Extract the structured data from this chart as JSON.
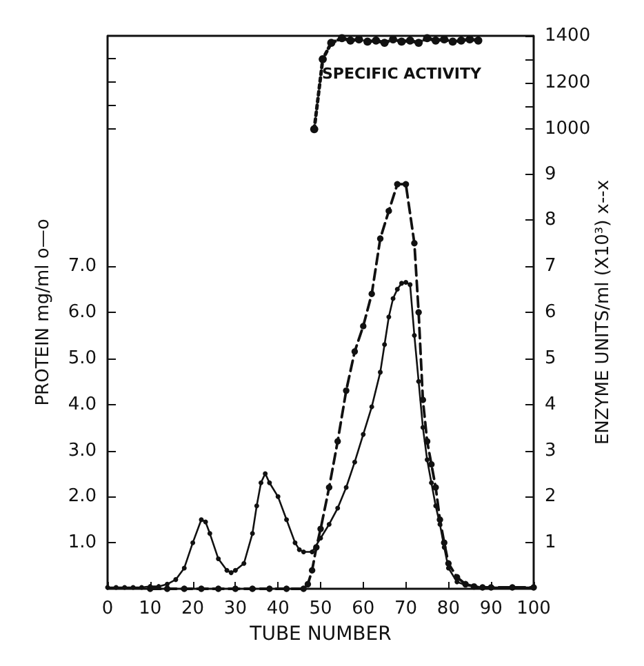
{
  "chart_data": {
    "type": "line",
    "xlabel": "TUBE NUMBER",
    "ylabel": "PROTEIN mg/ml o—o",
    "y2label": "ENZYME UNITS/ml (X10³) x--x",
    "xlim": [
      0,
      100
    ],
    "xticks": [
      0,
      10,
      20,
      30,
      40,
      50,
      60,
      70,
      80,
      90,
      100
    ],
    "ylim": [
      0,
      12
    ],
    "yticks": [
      {
        "value": 1,
        "label": "1.0"
      },
      {
        "value": 2,
        "label": "2.0"
      },
      {
        "value": 3,
        "label": "3.0"
      },
      {
        "value": 4,
        "label": "4.0"
      },
      {
        "value": 5,
        "label": "5.0"
      },
      {
        "value": 6,
        "label": "6.0"
      },
      {
        "value": 7,
        "label": "7.0"
      },
      {
        "value": 10,
        "label": null
      },
      {
        "value": 10.5,
        "label": null
      },
      {
        "value": 11,
        "label": null
      },
      {
        "value": 11.5,
        "label": null
      }
    ],
    "y2lim": [
      0,
      12
    ],
    "y2ticks": [
      1,
      2,
      3,
      4,
      5,
      6,
      7,
      8,
      9
    ],
    "y3lim": [
      -970,
      1400
    ],
    "y3ticks": [
      1000,
      {
        "value": 1100,
        "label": null
      },
      1200,
      {
        "value": 1300,
        "label": null
      },
      1400
    ],
    "grid": false,
    "legend": false,
    "marker": "circle",
    "series": [
      {
        "color": "#111111",
        "line_style": "solid",
        "x": [
          0,
          2,
          4,
          6,
          8,
          10,
          12,
          14,
          16,
          18,
          20,
          22,
          23,
          24,
          26,
          28,
          29,
          30,
          32,
          34,
          35,
          36,
          37,
          38,
          40,
          42,
          44,
          45,
          46,
          48,
          50,
          52,
          54,
          56,
          58,
          60,
          62,
          64,
          65,
          66,
          67,
          68,
          69,
          70,
          71,
          72,
          73,
          74,
          75,
          76,
          77,
          78,
          79,
          80,
          82,
          84,
          86,
          88,
          90,
          95,
          100
        ],
        "values": [
          0.03,
          0.03,
          0.03,
          0.03,
          0.03,
          0.05,
          0.05,
          0.1,
          0.2,
          0.45,
          1.0,
          1.5,
          1.45,
          1.2,
          0.65,
          0.4,
          0.35,
          0.4,
          0.55,
          1.2,
          1.8,
          2.3,
          2.5,
          2.3,
          2.0,
          1.5,
          1.0,
          0.85,
          0.8,
          0.8,
          1.1,
          1.4,
          1.75,
          2.2,
          2.75,
          3.35,
          3.95,
          4.7,
          5.3,
          5.9,
          6.3,
          6.5,
          6.63,
          6.65,
          6.6,
          5.5,
          4.5,
          3.5,
          2.8,
          2.3,
          1.8,
          1.4,
          0.9,
          0.45,
          0.15,
          0.08,
          0.05,
          0.03,
          0.03,
          0.03,
          0.03
        ]
      },
      {
        "color": "#111111",
        "line_style": "dashed",
        "axis": "y2",
        "x": [
          10,
          14,
          18,
          22,
          26,
          30,
          34,
          38,
          42,
          46,
          47,
          48,
          49,
          50,
          52,
          54,
          56,
          58,
          60,
          62,
          64,
          66,
          68,
          70,
          72,
          73,
          74,
          75,
          76,
          77,
          78,
          79,
          80,
          82,
          84,
          86,
          88,
          90,
          95,
          100
        ],
        "values": [
          0,
          0,
          0,
          0,
          0,
          0,
          0,
          0,
          0,
          0,
          0.1,
          0.4,
          0.9,
          1.3,
          2.2,
          3.2,
          4.3,
          5.15,
          5.7,
          6.4,
          7.6,
          8.2,
          8.78,
          8.78,
          7.5,
          6.0,
          4.1,
          3.2,
          2.7,
          2.2,
          1.5,
          1.0,
          0.55,
          0.25,
          0.1,
          0.05,
          0.03,
          0.03,
          0.03,
          0.03
        ]
      },
      {
        "name": "SPECIFIC ACTIVITY",
        "color": "#111111",
        "line_style": "dotted",
        "axis": "y3",
        "x": [
          48.5,
          50.5,
          52.5,
          55,
          57,
          59,
          61,
          63,
          65,
          67,
          69,
          71,
          73,
          75,
          77,
          79,
          81,
          83,
          85,
          87
        ],
        "values": [
          1000,
          1300,
          1370,
          1390,
          1380,
          1385,
          1375,
          1380,
          1370,
          1385,
          1375,
          1380,
          1370,
          1390,
          1380,
          1385,
          1375,
          1380,
          1385,
          1380
        ]
      }
    ]
  }
}
